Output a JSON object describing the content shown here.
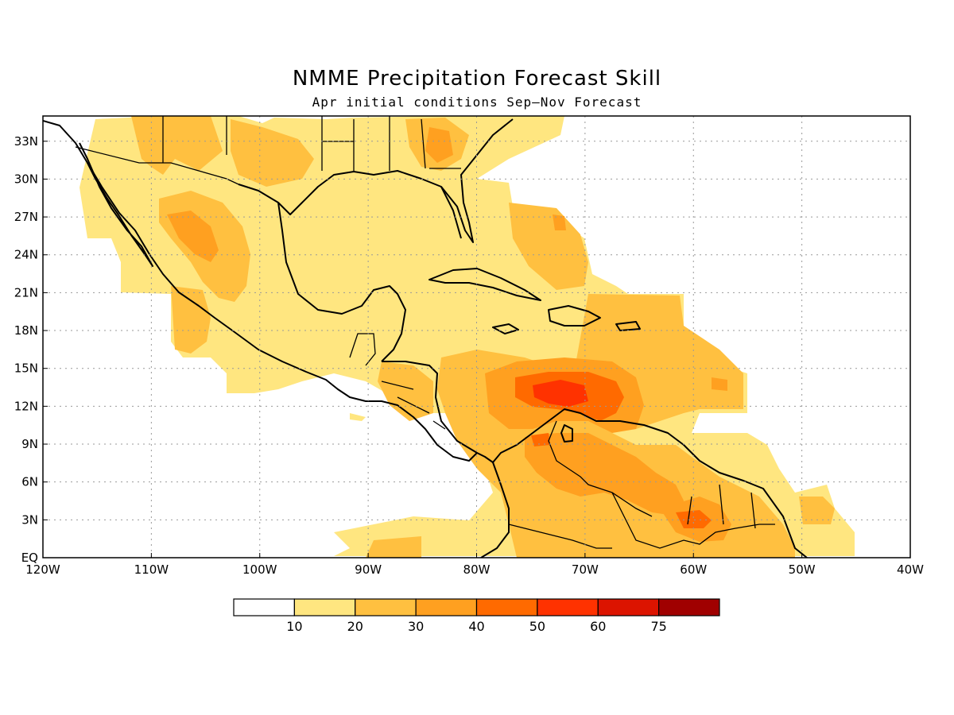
{
  "title": "NMME Precipitation Forecast Skill",
  "subtitle": "Apr initial conditions  Sep–Nov Forecast",
  "map": {
    "lon_range": [
      -120,
      -40
    ],
    "lat_range": [
      0,
      35
    ],
    "lon_ticks": [
      {
        "value": -120,
        "label": "120W"
      },
      {
        "value": -110,
        "label": "110W"
      },
      {
        "value": -100,
        "label": "100W"
      },
      {
        "value": -90,
        "label": "90W"
      },
      {
        "value": -80,
        "label": "80W"
      },
      {
        "value": -70,
        "label": "70W"
      },
      {
        "value": -60,
        "label": "60W"
      },
      {
        "value": -50,
        "label": "50W"
      },
      {
        "value": -40,
        "label": "40W"
      }
    ],
    "lat_ticks": [
      {
        "value": 0,
        "label": "EQ"
      },
      {
        "value": 3,
        "label": "3N"
      },
      {
        "value": 6,
        "label": "6N"
      },
      {
        "value": 9,
        "label": "9N"
      },
      {
        "value": 12,
        "label": "12N"
      },
      {
        "value": 15,
        "label": "15N"
      },
      {
        "value": 18,
        "label": "18N"
      },
      {
        "value": 21,
        "label": "21N"
      },
      {
        "value": 24,
        "label": "24N"
      },
      {
        "value": 27,
        "label": "27N"
      },
      {
        "value": 30,
        "label": "30N"
      },
      {
        "value": 33,
        "label": "33N"
      }
    ],
    "grid": "dotted"
  },
  "colorbar": {
    "labels": [
      "10",
      "20",
      "30",
      "40",
      "50",
      "60",
      "75"
    ],
    "colors": [
      "#ffffff",
      "#ffe680",
      "#ffc040",
      "#ffa020",
      "#ff6a00",
      "#ff3200",
      "#dc1400",
      "#a00000"
    ]
  }
}
